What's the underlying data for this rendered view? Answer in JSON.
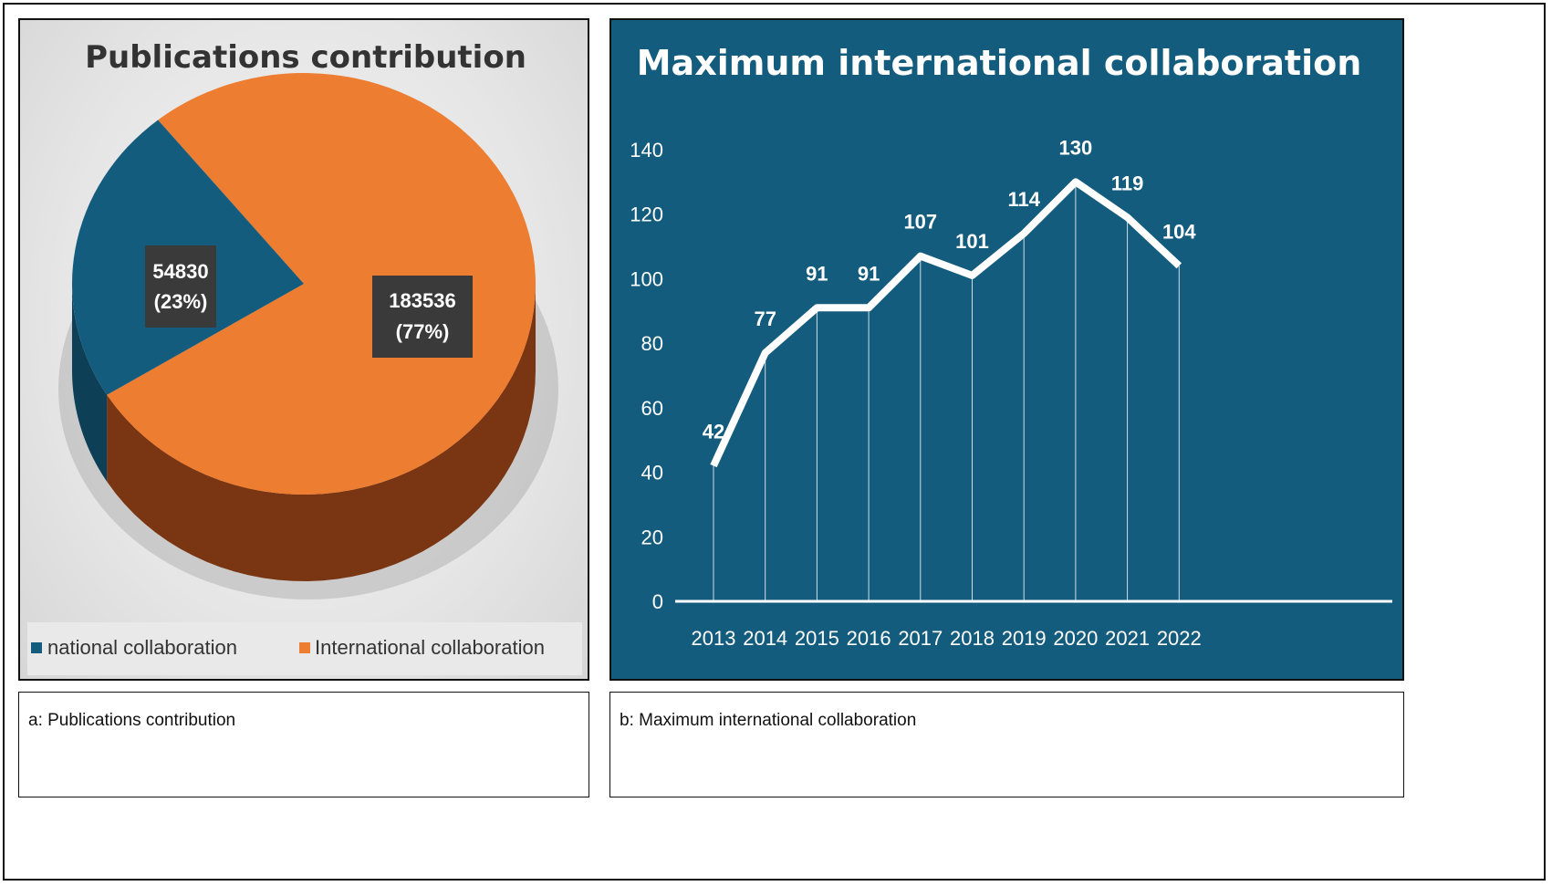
{
  "chart_data": [
    {
      "type": "pie",
      "title": "Publications contribution",
      "slices": [
        {
          "name": "national collaboration",
          "value": 54830,
          "percent": "23%",
          "label": "54830",
          "pct_label": "(23%)",
          "color": "#145c7d"
        },
        {
          "name": "International collaboration",
          "value": 183536,
          "percent": "77%",
          "label": "183536",
          "pct_label": "(77%)",
          "color": "#ed7d31"
        }
      ],
      "legend": "bottom"
    },
    {
      "type": "line",
      "title": "Maximum international collaboration",
      "categories": [
        "2013",
        "2014",
        "2015",
        "2016",
        "2017",
        "2018",
        "2019",
        "2020",
        "2021",
        "2022"
      ],
      "values": [
        42,
        77,
        91,
        91,
        107,
        101,
        114,
        130,
        119,
        104
      ],
      "yticks": [
        "0",
        "20",
        "40",
        "60",
        "80",
        "100",
        "120",
        "140"
      ],
      "ylim": [
        0,
        140
      ],
      "xlabel": "",
      "ylabel": ""
    }
  ],
  "captions": {
    "a": "a: Publications contribution",
    "b": "b: Maximum international collaboration"
  }
}
